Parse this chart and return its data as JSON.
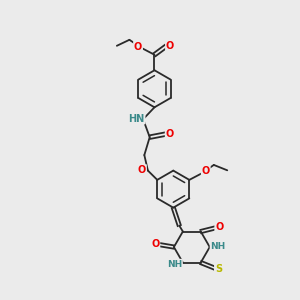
{
  "bg_color": "#ebebeb",
  "bond_color": "#2a2a2a",
  "atom_colors": {
    "O": "#ee0000",
    "N": "#2222cc",
    "S": "#b8b800",
    "NH": "#3a8a8a",
    "C": "#2a2a2a"
  },
  "font_size": 7.0,
  "lw": 1.3,
  "figsize": [
    3.0,
    3.0
  ],
  "dpi": 100
}
